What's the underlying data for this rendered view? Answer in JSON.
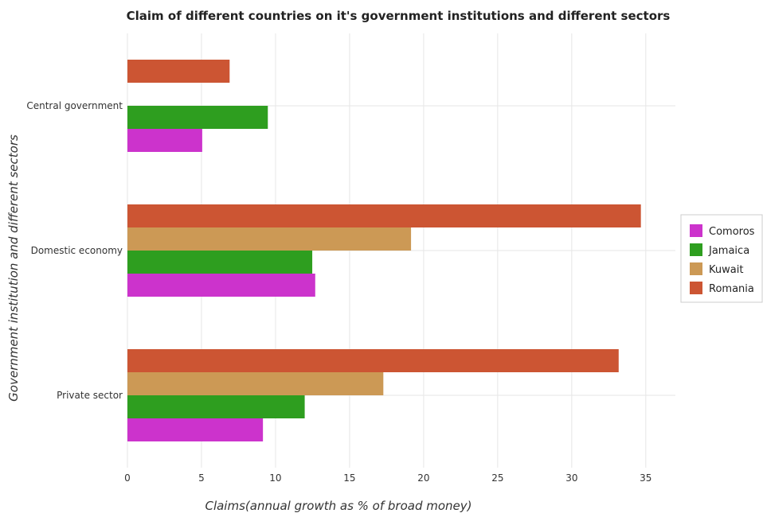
{
  "chart_data": {
    "type": "bar",
    "orientation": "horizontal",
    "title": "Claim of different countries on it's government institutions and different sectors",
    "xlabel": "Claims(annual growth as % of broad money)",
    "ylabel": "Government institution and different sectors",
    "categories": [
      "Central government",
      "Domestic economy",
      "Private sector"
    ],
    "xlim": [
      0,
      37
    ],
    "xticks": [
      0,
      5,
      10,
      15,
      20,
      25,
      30,
      35
    ],
    "grid": true,
    "legend_position": "right",
    "series": [
      {
        "name": "Comoros",
        "color": "#cc33cc",
        "values": [
          5.05,
          12.68,
          9.15
        ]
      },
      {
        "name": "Jamaica",
        "color": "#2e9e1f",
        "values": [
          9.48,
          12.48,
          11.97
        ]
      },
      {
        "name": "Kuwait",
        "color": "#cc9955",
        "values": [
          0,
          19.15,
          17.28
        ]
      },
      {
        "name": "Romania",
        "color": "#cc5533",
        "values": [
          6.9,
          34.67,
          33.17
        ]
      }
    ]
  }
}
